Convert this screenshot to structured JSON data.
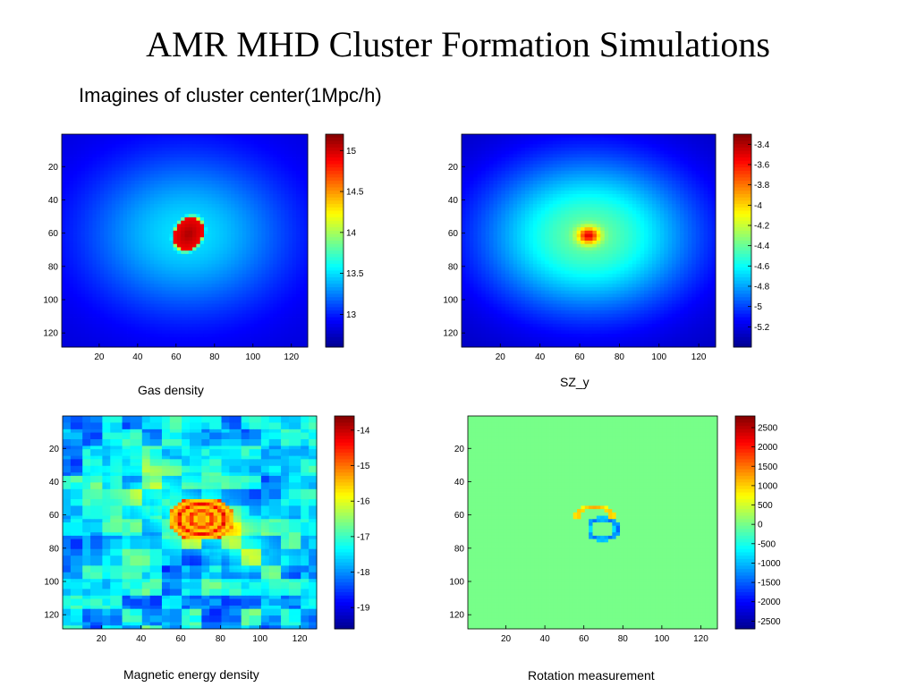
{
  "slide": {
    "title": "AMR MHD Cluster Formation Simulations",
    "subtitle": "Imagines of cluster center(1Mpc/h)"
  },
  "colormap": [
    "#00008f",
    "#0000ff",
    "#0080ff",
    "#00ffff",
    "#80ff80",
    "#ffff00",
    "#ff8000",
    "#ff0000",
    "#800000"
  ],
  "chart_data": [
    {
      "type": "heatmap",
      "caption": "Gas density",
      "grid_size": 128,
      "x_ticks": [
        20,
        40,
        60,
        80,
        100,
        120
      ],
      "y_ticks": [
        20,
        40,
        60,
        80,
        100,
        120
      ],
      "colorbar": {
        "range": [
          12.6,
          15.2
        ],
        "ticks": [
          13,
          13.5,
          14,
          14.5,
          15
        ],
        "labels": [
          "13",
          "13.5",
          "14",
          "14.5",
          "15"
        ]
      },
      "features": {
        "background": 12.8,
        "halo_peak": 13.5,
        "halo_center": [
          65,
          60
        ],
        "core_peak": 15.1,
        "core_center": [
          66,
          60
        ]
      }
    },
    {
      "type": "heatmap",
      "caption": "SZ_y",
      "grid_size": 128,
      "x_ticks": [
        20,
        40,
        60,
        80,
        100,
        120
      ],
      "y_ticks": [
        20,
        40,
        60,
        80,
        100,
        120
      ],
      "colorbar": {
        "range": [
          -5.4,
          -3.3
        ],
        "ticks": [
          -3.4,
          -3.6,
          -3.8,
          -4,
          -4.2,
          -4.4,
          -4.6,
          -4.8,
          -5,
          -5.2
        ],
        "labels": [
          "-3.4",
          "-3.6",
          "-3.8",
          "-4",
          "-4.2",
          "-4.4",
          "-4.6",
          "-4.8",
          "-5",
          "-5.2"
        ]
      },
      "features": {
        "background": -5.3,
        "halo_peak": -4.4,
        "halo_center": [
          64,
          61
        ],
        "core_peak": -3.5,
        "core_center": [
          64,
          61
        ]
      }
    },
    {
      "type": "heatmap",
      "caption": "Magnetic energy density",
      "grid_size": 128,
      "x_ticks": [
        20,
        40,
        60,
        80,
        100,
        120
      ],
      "y_ticks": [
        20,
        40,
        60,
        80,
        100,
        120
      ],
      "colorbar": {
        "range": [
          -19.6,
          -13.6
        ],
        "ticks": [
          -14,
          -15,
          -16,
          -17,
          -18,
          -19
        ],
        "labels": [
          "-14",
          "-15",
          "-16",
          "-17",
          "-18",
          "-19"
        ]
      },
      "features": {
        "background": -17.6,
        "halo_peak": -16.5,
        "halo_center": [
          68,
          62
        ],
        "core_peak": -14.2,
        "core_center": [
          70,
          62
        ]
      }
    },
    {
      "type": "heatmap",
      "caption": "Rotation measurement",
      "grid_size": 128,
      "x_ticks": [
        20,
        40,
        60,
        80,
        100,
        120
      ],
      "y_ticks": [
        20,
        40,
        60,
        80,
        100,
        120
      ],
      "colorbar": {
        "range": [
          -2700,
          2800
        ],
        "ticks": [
          2500,
          2000,
          1500,
          1000,
          500,
          0,
          -500,
          -1000,
          -1500,
          -2000,
          -2500
        ],
        "labels": [
          "2500",
          "2000",
          "1500",
          "1000",
          "500",
          "0",
          "-500",
          "-1000",
          "-1500",
          "-2000",
          "-2500"
        ]
      },
      "features": {
        "background": 0,
        "positive_arc_center": [
          65,
          60
        ],
        "negative_arc_center": [
          69,
          68
        ],
        "peak_positive": 1200,
        "peak_negative": -1500
      }
    }
  ]
}
